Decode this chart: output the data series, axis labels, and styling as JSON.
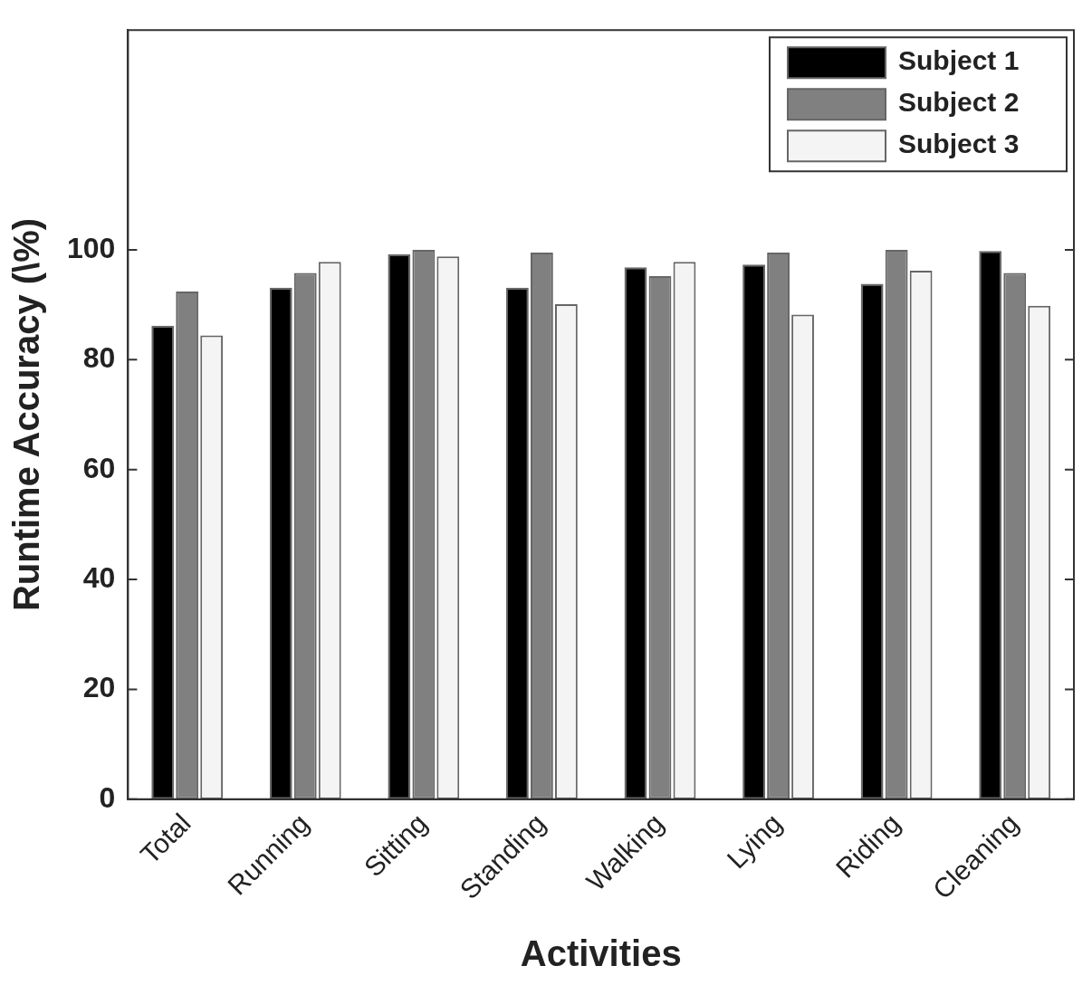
{
  "chart_data": {
    "type": "bar",
    "xlabel": "Activities",
    "ylabel": "Runtime Accuracy (\\%)",
    "categories": [
      "Total",
      "Running",
      "Sitting",
      "Standing",
      "Walking",
      "Lying",
      "Riding",
      "Cleaning"
    ],
    "series": [
      {
        "name": "Subject 1",
        "color": "#000000",
        "values": [
          86.2,
          93.1,
          99.2,
          93.1,
          96.8,
          97.3,
          93.8,
          99.8
        ]
      },
      {
        "name": "Subject 2",
        "color": "#808080",
        "values": [
          92.4,
          95.8,
          100,
          99.5,
          95.2,
          99.5,
          100,
          95.8
        ]
      },
      {
        "name": "Subject 3",
        "color": "#f4f4f4",
        "values": [
          84.4,
          97.8,
          98.8,
          90.1,
          97.8,
          88.2,
          96.2,
          89.8
        ]
      }
    ],
    "ylim": [
      0,
      140
    ],
    "yticks": [
      0,
      20,
      40,
      60,
      80,
      100
    ],
    "grid": false,
    "legend": "top right"
  }
}
